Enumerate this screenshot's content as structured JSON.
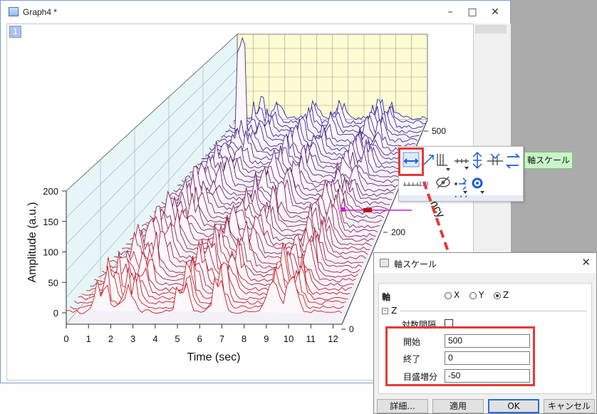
{
  "window": {
    "title": "Graph4 *",
    "layer": "1"
  },
  "graph": {
    "y_axis_label": "Amplitude (a.u.)",
    "x_axis_label": "Time (sec)",
    "z_axis_label": "Frequency",
    "x_ticks": [
      "0",
      "1",
      "2",
      "3",
      "4",
      "5",
      "6",
      "7",
      "8",
      "9",
      "10",
      "11",
      "12"
    ],
    "y_ticks": [
      "200",
      "150",
      "100",
      "50",
      "0"
    ],
    "z_ticks": [
      "500",
      "200",
      "0"
    ]
  },
  "tooltip": "軸スケール",
  "toolbar": {
    "grip": "• • •"
  },
  "dialog": {
    "title": "軸スケール",
    "axis_label": "軸",
    "axis_options": [
      "X",
      "Y",
      "Z"
    ],
    "selected_axis": "Z",
    "section": "Z",
    "log_label": "対数間隔",
    "fields": [
      {
        "label": "開始",
        "value": "500"
      },
      {
        "label": "終了",
        "value": "0"
      },
      {
        "label": "目盛増分",
        "value": "-50"
      }
    ],
    "buttons": [
      "詳細...",
      "適用",
      "OK",
      "キャンセル"
    ]
  }
}
